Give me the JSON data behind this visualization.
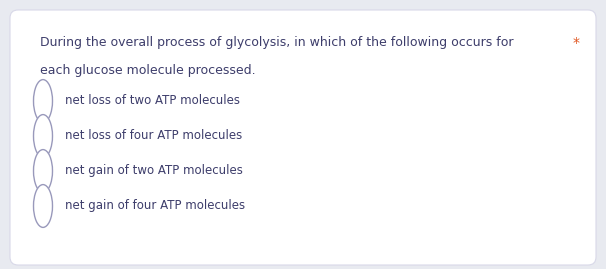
{
  "background_color": "#e8eaf0",
  "card_color": "#ffffff",
  "card_edge_color": "#d8d8e8",
  "question_text_line1": "During the overall process of glycolysis, in which of the following occurs for",
  "question_text_line2": "each glucose molecule processed.",
  "question_text_color": "#3d3d6b",
  "asterisk": "*",
  "asterisk_color": "#e05520",
  "options": [
    "net loss of two ATP molecules",
    "net loss of four ATP molecules",
    "net gain of two ATP molecules",
    "net gain of four ATP molecules"
  ],
  "option_text_color": "#3d3d6b",
  "circle_edge_color": "#9999bb",
  "circle_face_color": "#ffffff",
  "font_size_question": 9.0,
  "font_size_options": 8.5,
  "asterisk_fontsize": 10.0
}
